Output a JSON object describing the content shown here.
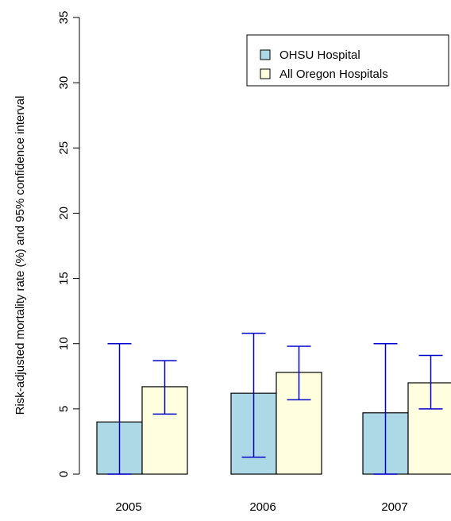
{
  "chart_data": {
    "type": "bar",
    "categories": [
      "2005",
      "2006",
      "2007"
    ],
    "series": [
      {
        "name": "OHSU Hospital",
        "values": [
          4.0,
          6.2,
          4.7
        ],
        "ci_low": [
          0.0,
          1.3,
          0.0
        ],
        "ci_high": [
          10.0,
          10.8,
          10.0
        ],
        "color": "#add8e6"
      },
      {
        "name": "All Oregon Hospitals",
        "values": [
          6.7,
          7.8,
          7.0
        ],
        "ci_low": [
          4.6,
          5.7,
          5.0
        ],
        "ci_high": [
          8.7,
          9.8,
          9.1
        ],
        "color": "#ffffe0"
      }
    ],
    "title": "",
    "xlabel": "",
    "ylabel": "Risk-adjusted mortality rate (%) and 95% confidence interval",
    "ylim": [
      0,
      35
    ],
    "yticks": [
      "0",
      "5",
      "10",
      "15",
      "20",
      "25",
      "30",
      "35"
    ],
    "grid": false,
    "legend": "top-right",
    "error_bar_color": "#0000cd"
  }
}
